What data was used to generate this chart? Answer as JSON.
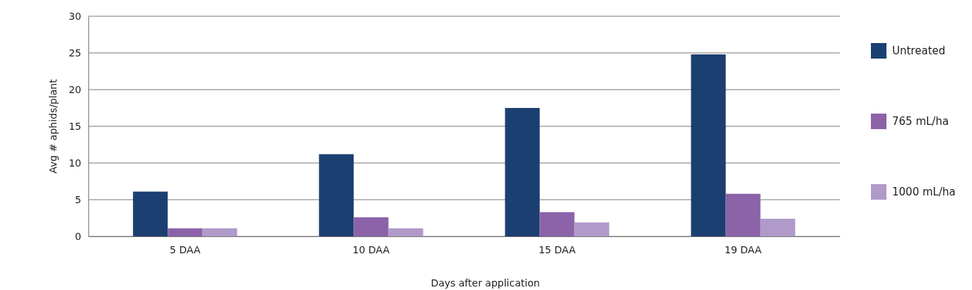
{
  "chart_data": {
    "type": "bar",
    "xlabel": "Days after application",
    "ylabel": "Avg # aphids/plant",
    "categories": [
      "5 DAA",
      "10 DAA",
      "15 DAA",
      "19 DAA"
    ],
    "series": [
      {
        "name": "Untreated",
        "color": "#1c3f72",
        "values": [
          6.1,
          11.2,
          17.5,
          24.8
        ]
      },
      {
        "name": "765 mL/ha",
        "color": "#8c62a8",
        "values": [
          1.1,
          2.6,
          3.3,
          5.8
        ]
      },
      {
        "name": "1000 mL/ha",
        "color": "#b09ac9",
        "values": [
          1.1,
          1.1,
          1.9,
          2.4
        ]
      }
    ],
    "ylim": [
      0,
      30
    ],
    "yticks": [
      0,
      5,
      10,
      15,
      20,
      25,
      30
    ],
    "grid": "y",
    "legend": "right"
  }
}
